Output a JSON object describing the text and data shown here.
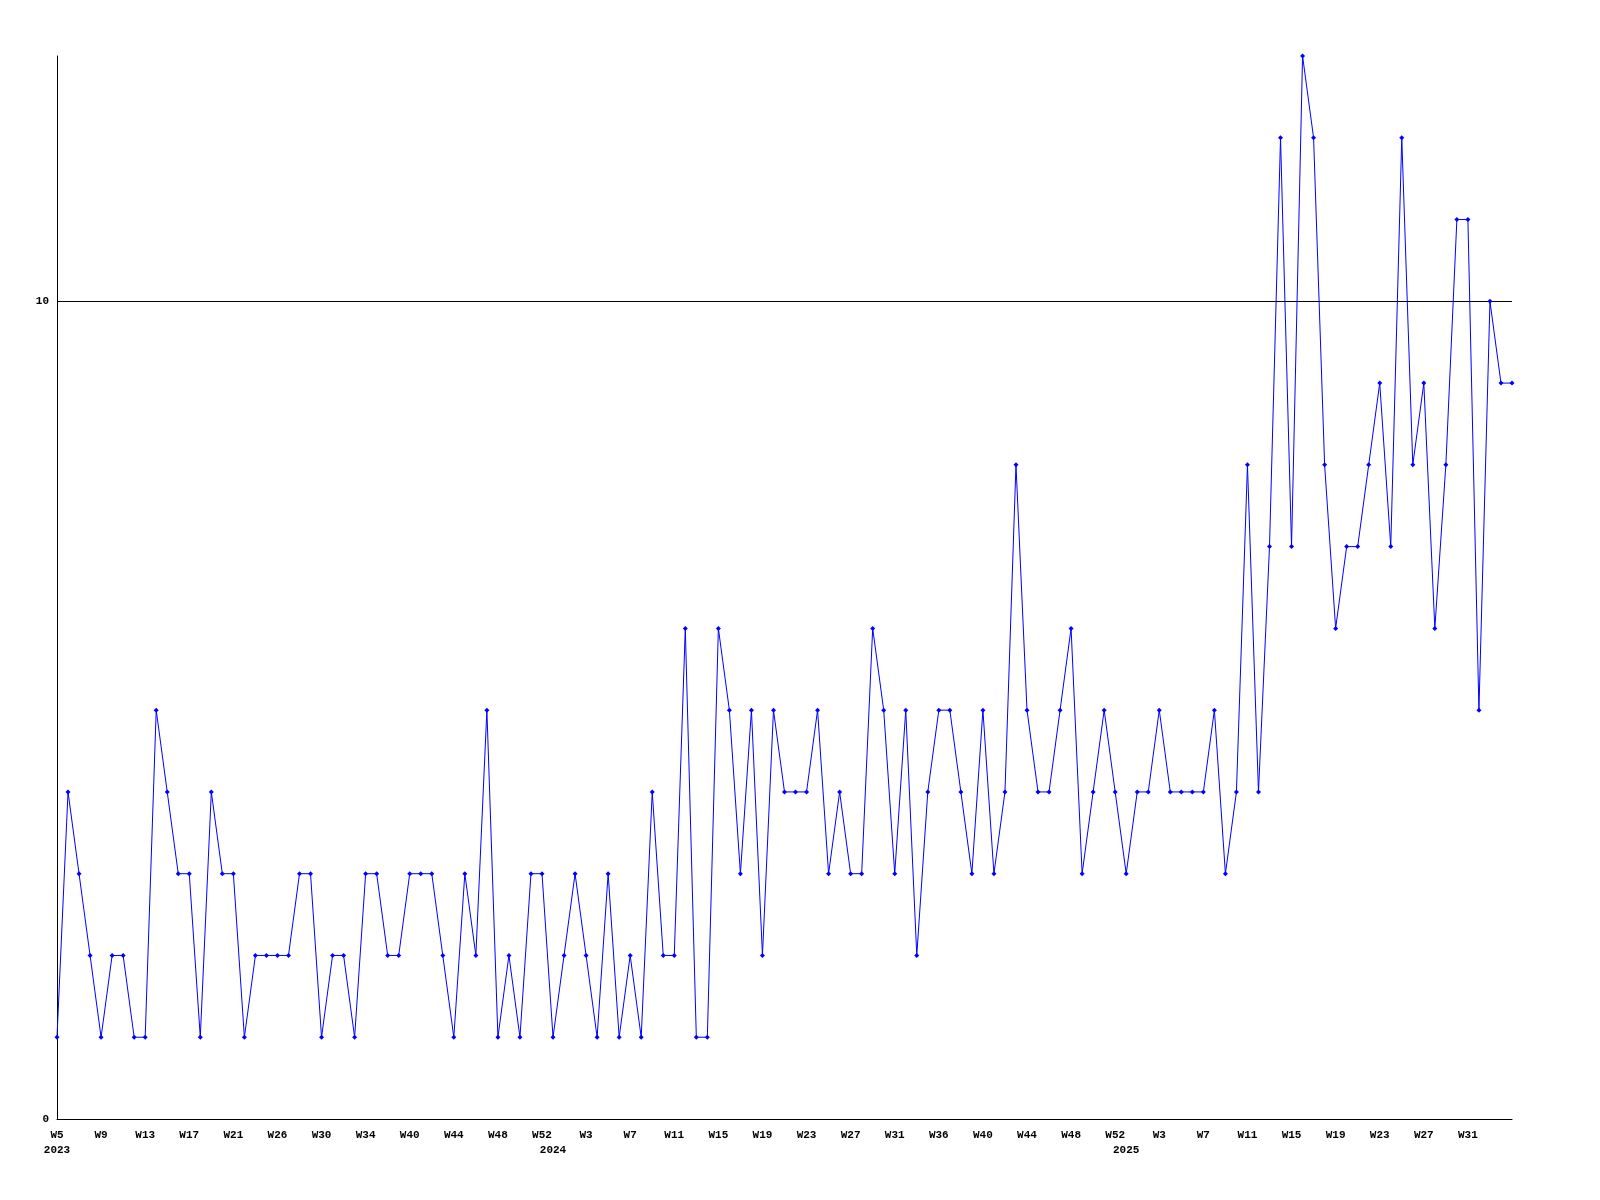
{
  "chart_data": {
    "type": "line",
    "categories": [
      "W5\n2023",
      null,
      null,
      null,
      "W9",
      null,
      null,
      null,
      "W13",
      null,
      null,
      null,
      "W17",
      null,
      null,
      null,
      "W21",
      null,
      null,
      null,
      "W26",
      null,
      null,
      null,
      "W30",
      null,
      null,
      null,
      "W34",
      null,
      null,
      null,
      "W40",
      null,
      null,
      null,
      "W44",
      null,
      null,
      null,
      "W48",
      null,
      null,
      null,
      "W52",
      "\n2024",
      null,
      null,
      "W3",
      null,
      null,
      null,
      "W7",
      null,
      null,
      null,
      "W11",
      null,
      null,
      null,
      "W15",
      null,
      null,
      null,
      "W19",
      null,
      null,
      null,
      "W23",
      null,
      null,
      null,
      "W27",
      null,
      null,
      null,
      "W31",
      null,
      null,
      null,
      "W36",
      null,
      null,
      null,
      "W40",
      null,
      null,
      null,
      "W44",
      null,
      null,
      null,
      "W48",
      null,
      null,
      null,
      "W52",
      "\n2025",
      null,
      null,
      "W3",
      null,
      null,
      null,
      "W7",
      null,
      null,
      null,
      "W11",
      null,
      null,
      null,
      "W15",
      null,
      null,
      null,
      "W19",
      null,
      null,
      null,
      "W23",
      null,
      null,
      null,
      "W27",
      null,
      null,
      null,
      "W31",
      null,
      null,
      null,
      null
    ],
    "series": [
      {
        "color": "#0000ff",
        "values": [
          1,
          4,
          3,
          2,
          1,
          2,
          2,
          1,
          1,
          5,
          4,
          3,
          3,
          1,
          4,
          3,
          3,
          1,
          2,
          2,
          2,
          2,
          3,
          3,
          1,
          2,
          2,
          1,
          3,
          3,
          2,
          2,
          3,
          3,
          3,
          2,
          1,
          3,
          2,
          5,
          1,
          2,
          1,
          3,
          3,
          1,
          2,
          3,
          2,
          1,
          3,
          1,
          2,
          1,
          4,
          2,
          2,
          6,
          1,
          1,
          6,
          5,
          3,
          5,
          2,
          5,
          4,
          4,
          4,
          5,
          3,
          4,
          3,
          3,
          6,
          5,
          3,
          5,
          2,
          4,
          5,
          5,
          4,
          3,
          5,
          3,
          4,
          8,
          5,
          4,
          4,
          5,
          6,
          3,
          4,
          5,
          4,
          3,
          4,
          4,
          5,
          4,
          4,
          4,
          4,
          5,
          3,
          4,
          8,
          4,
          7,
          12,
          7,
          13,
          12,
          8,
          6,
          7,
          7,
          8,
          9,
          7,
          12,
          8,
          9,
          6,
          8,
          11,
          11,
          5,
          10,
          9,
          9
        ]
      }
    ],
    "ylim": [
      0,
      13
    ],
    "yticks": [
      0,
      10
    ],
    "grid": "y",
    "marker": "diamond",
    "line_style": "solid"
  }
}
